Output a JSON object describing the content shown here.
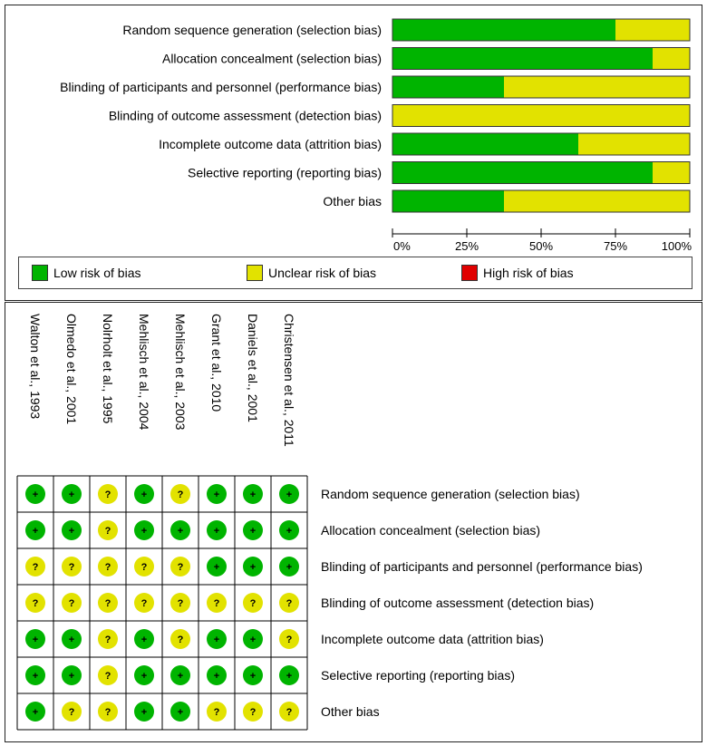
{
  "colors": {
    "low": "#00b400",
    "unclear": "#e2e200",
    "high": "#e00000",
    "bar_border": "#333333"
  },
  "chart_data": [
    {
      "type": "bar",
      "orientation": "horizontal",
      "stacked": true,
      "categories": [
        "Random sequence generation (selection bias)",
        "Allocation concealment (selection bias)",
        "Blinding of participants and personnel (performance bias)",
        "Blinding of outcome assessment (detection bias)",
        "Incomplete outcome data (attrition bias)",
        "Selective reporting (reporting bias)",
        "Other bias"
      ],
      "series": [
        {
          "name": "Low risk of bias",
          "key": "low",
          "values": [
            75,
            87.5,
            37.5,
            0,
            62.5,
            87.5,
            37.5
          ]
        },
        {
          "name": "Unclear risk of bias",
          "key": "unclear",
          "values": [
            25,
            12.5,
            62.5,
            100,
            37.5,
            12.5,
            62.5
          ]
        },
        {
          "name": "High risk of bias",
          "key": "high",
          "values": [
            0,
            0,
            0,
            0,
            0,
            0,
            0
          ]
        }
      ],
      "x_ticks": [
        "0%",
        "25%",
        "50%",
        "75%",
        "100%"
      ],
      "xlim": [
        0,
        100
      ],
      "legend": [
        "Low risk of bias",
        "Unclear risk of bias",
        "High risk of bias"
      ]
    },
    {
      "type": "table",
      "studies": [
        "Walton et al., 1993",
        "Olmedo et al., 2001",
        "Nolrholt et al., 1995",
        "Mehlisch et al., 2004",
        "Mehlisch et al., 2003",
        "Grant et al., 2010",
        "Daniels et al., 2001",
        "Christensen et al., 2011"
      ],
      "domains": [
        "Random sequence generation (selection bias)",
        "Allocation concealment (selection bias)",
        "Blinding of participants and personnel (performance bias)",
        "Blinding of outcome assessment (detection bias)",
        "Incomplete outcome data (attrition bias)",
        "Selective reporting (reporting bias)",
        "Other bias"
      ],
      "judgements": [
        [
          "+",
          "+",
          "?",
          "+",
          "?",
          "+",
          "+",
          "+"
        ],
        [
          "+",
          "+",
          "?",
          "+",
          "+",
          "+",
          "+",
          "+"
        ],
        [
          "?",
          "?",
          "?",
          "?",
          "?",
          "+",
          "+",
          "+"
        ],
        [
          "?",
          "?",
          "?",
          "?",
          "?",
          "?",
          "?",
          "?"
        ],
        [
          "+",
          "+",
          "?",
          "+",
          "?",
          "+",
          "+",
          "?"
        ],
        [
          "+",
          "+",
          "?",
          "+",
          "+",
          "+",
          "+",
          "+"
        ],
        [
          "+",
          "?",
          "?",
          "+",
          "+",
          "?",
          "?",
          "?"
        ]
      ],
      "symbols": {
        "low": "+",
        "unclear": "?"
      }
    }
  ]
}
